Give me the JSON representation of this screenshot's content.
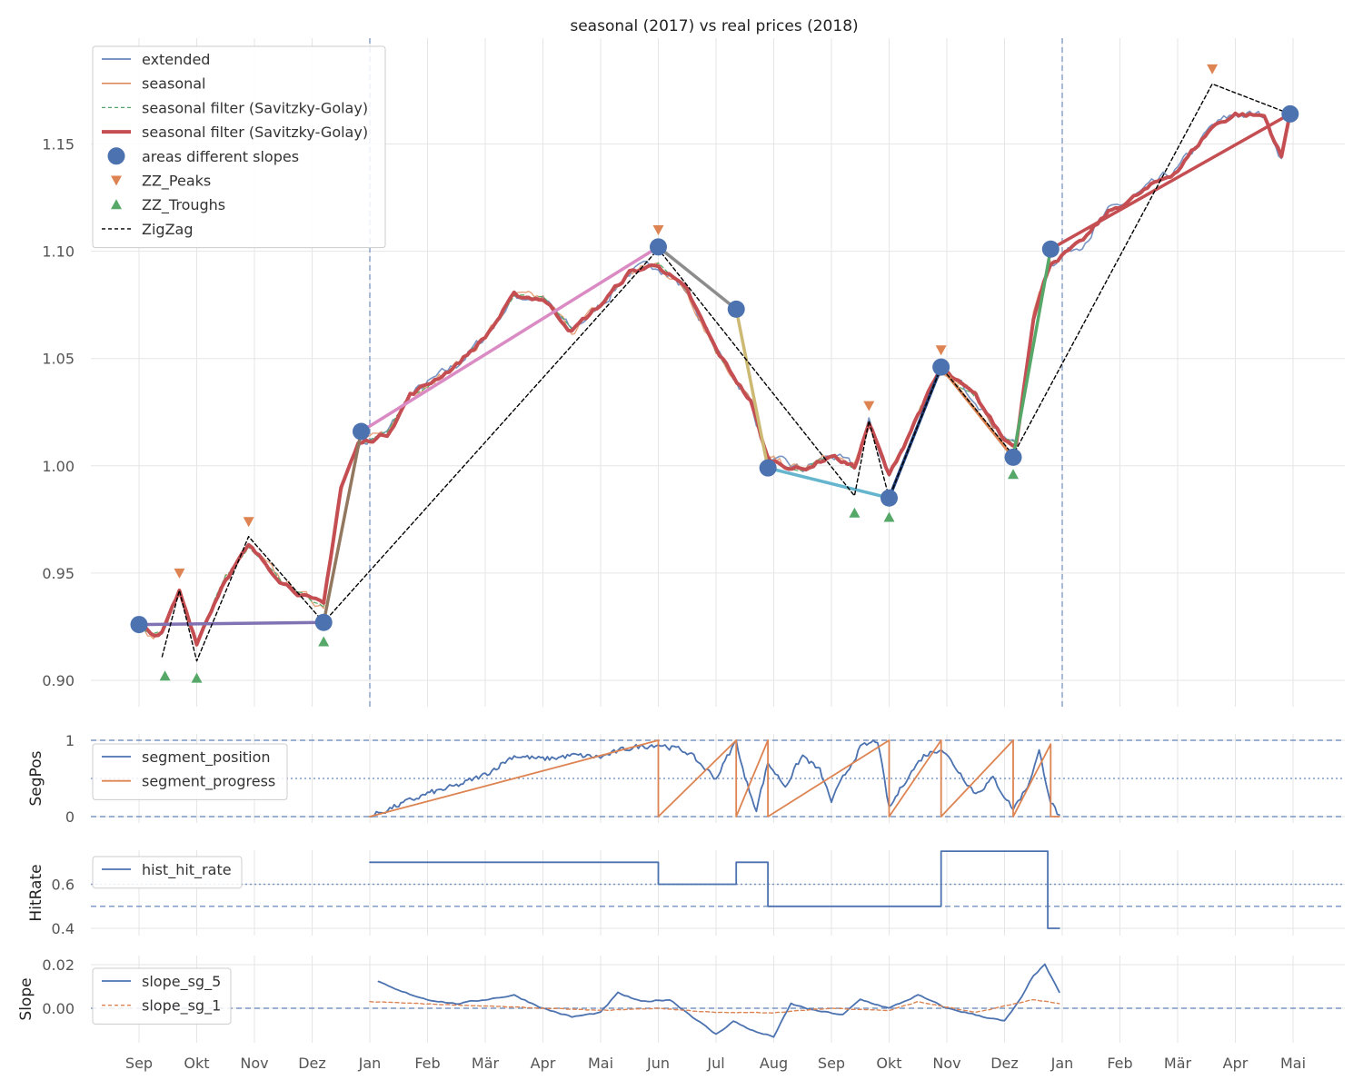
{
  "title": "seasonal (2017) vs real prices (2018)",
  "months": [
    "Sep",
    "Okt",
    "Nov",
    "Dez",
    "Jan",
    "Feb",
    "Mär",
    "Apr",
    "Mai",
    "Jun",
    "Jul",
    "Aug",
    "Sep",
    "Okt",
    "Nov",
    "Dez",
    "Jan",
    "Feb",
    "Mär",
    "Apr",
    "Mai"
  ],
  "colors": {
    "blue": "#4c72b0",
    "orange": "#dd8452",
    "green": "#55a868",
    "red": "#c44e52",
    "purple": "#8172b3",
    "brown": "#937860",
    "pink": "#da8bc3",
    "gray": "#8c8c8c",
    "olive": "#ccb974",
    "cyan": "#64b5cd",
    "navy": "#1f3f7a"
  },
  "chart_data": [
    {
      "type": "line",
      "title": "seasonal (2017) vs real prices (2018)",
      "ylabel": "",
      "ylim": [
        0.888,
        1.2
      ],
      "yticks": [
        "0.90",
        "0.95",
        "1.00",
        "1.05",
        "1.10",
        "1.15"
      ],
      "legend": [
        "extended",
        "seasonal",
        "seasonal filter (Savitzky-Golay)",
        "seasonal filter (Savitzky-Golay)",
        "areas different slopes",
        "ZZ_Peaks",
        "ZZ_Troughs",
        "ZigZag"
      ],
      "legend_position": "top-left",
      "series": [
        {
          "name": "areas different slopes",
          "points": [
            [
              0,
              0.926
            ],
            [
              3.2,
              0.927
            ],
            [
              3.85,
              1.016
            ],
            [
              9.0,
              1.102
            ],
            [
              10.35,
              1.073
            ],
            [
              10.9,
              0.999
            ],
            [
              13.0,
              0.985
            ],
            [
              13.9,
              1.046
            ],
            [
              15.15,
              1.004
            ],
            [
              15.8,
              1.101
            ],
            [
              19.95,
              1.164
            ]
          ]
        },
        {
          "name": "ZZ_Peaks",
          "points": [
            [
              0.7,
              0.95
            ],
            [
              1.9,
              0.974
            ],
            [
              9.0,
              1.11
            ],
            [
              12.65,
              1.028
            ],
            [
              13.9,
              1.054
            ],
            [
              18.6,
              1.185
            ]
          ]
        },
        {
          "name": "ZZ_Troughs",
          "points": [
            [
              0.45,
              0.902
            ],
            [
              1.0,
              0.901
            ],
            [
              3.2,
              0.918
            ],
            [
              12.4,
              0.978
            ],
            [
              13.0,
              0.976
            ],
            [
              15.15,
              0.996
            ]
          ]
        },
        {
          "name": "ZigZag",
          "points": [
            [
              0.4,
              0.911
            ],
            [
              0.7,
              0.942
            ],
            [
              1.0,
              0.909
            ],
            [
              1.9,
              0.967
            ],
            [
              3.2,
              0.927
            ],
            [
              9.0,
              1.101
            ],
            [
              12.4,
              0.986
            ],
            [
              12.65,
              1.021
            ],
            [
              13.0,
              0.985
            ],
            [
              13.9,
              1.046
            ],
            [
              15.15,
              1.005
            ],
            [
              18.6,
              1.178
            ],
            [
              19.95,
              1.164
            ]
          ]
        }
      ]
    },
    {
      "type": "line",
      "ylabel": "SegPos",
      "ylim": [
        0,
        1
      ],
      "yticks": [
        "0",
        "1"
      ],
      "legend": [
        "segment_position",
        "segment_progress"
      ],
      "series": [
        {
          "name": "segment_progress",
          "points": [
            [
              4.0,
              0
            ],
            [
              9.0,
              1
            ],
            [
              9.0,
              0
            ],
            [
              10.35,
              1
            ],
            [
              10.35,
              0
            ],
            [
              10.9,
              1
            ],
            [
              10.9,
              0
            ],
            [
              13.0,
              1
            ],
            [
              13.0,
              0
            ],
            [
              13.9,
              1
            ],
            [
              13.9,
              0
            ],
            [
              15.15,
              1
            ],
            [
              15.15,
              0
            ],
            [
              15.8,
              0.95
            ],
            [
              15.8,
              0
            ],
            [
              15.95,
              0
            ]
          ]
        },
        {
          "name": "segment_position",
          "points": [
            [
              4.0,
              0
            ],
            [
              4.5,
              0.15
            ],
            [
              5.0,
              0.3
            ],
            [
              5.5,
              0.4
            ],
            [
              6.0,
              0.55
            ],
            [
              6.5,
              0.8
            ],
            [
              7.0,
              0.75
            ],
            [
              7.5,
              0.8
            ],
            [
              8.0,
              0.78
            ],
            [
              8.5,
              0.9
            ],
            [
              9.0,
              0.95
            ],
            [
              9.5,
              0.85
            ],
            [
              10.0,
              0.5
            ],
            [
              10.35,
              1.0
            ],
            [
              10.5,
              0.5
            ],
            [
              10.7,
              0.1
            ],
            [
              10.9,
              0.7
            ],
            [
              11.2,
              0.4
            ],
            [
              11.5,
              0.8
            ],
            [
              11.8,
              0.6
            ],
            [
              12.0,
              0.2
            ],
            [
              12.2,
              0.5
            ],
            [
              12.5,
              0.9
            ],
            [
              12.8,
              1.0
            ],
            [
              13.0,
              0.1
            ],
            [
              13.3,
              0.5
            ],
            [
              13.6,
              0.8
            ],
            [
              13.9,
              0.9
            ],
            [
              14.2,
              0.6
            ],
            [
              14.5,
              0.3
            ],
            [
              14.8,
              0.5
            ],
            [
              15.15,
              0.1
            ],
            [
              15.4,
              0.4
            ],
            [
              15.6,
              0.85
            ],
            [
              15.8,
              0.2
            ],
            [
              15.95,
              0
            ]
          ]
        }
      ]
    },
    {
      "type": "line",
      "ylabel": "HitRate",
      "ylim": [
        0.38,
        0.78
      ],
      "yticks": [
        "0.4",
        "0.6"
      ],
      "legend": [
        "hist_hit_rate"
      ],
      "series": [
        {
          "name": "hist_hit_rate",
          "points": [
            [
              4.0,
              0.7
            ],
            [
              9.0,
              0.7
            ],
            [
              9.0,
              0.6
            ],
            [
              10.35,
              0.6
            ],
            [
              10.35,
              0.7
            ],
            [
              10.9,
              0.7
            ],
            [
              10.9,
              0.5
            ],
            [
              13.9,
              0.5
            ],
            [
              13.9,
              0.75
            ],
            [
              15.75,
              0.75
            ],
            [
              15.75,
              0.4
            ],
            [
              15.95,
              0.4
            ]
          ]
        }
      ]
    },
    {
      "type": "line",
      "ylabel": "Slope",
      "ylim": [
        -0.017,
        0.025
      ],
      "yticks": [
        "0.00",
        "0.02"
      ],
      "legend": [
        "slope_sg_5",
        "slope_sg_1"
      ],
      "series": [
        {
          "name": "slope_sg_5",
          "points": [
            [
              4.15,
              0.012
            ],
            [
              4.5,
              0.008
            ],
            [
              5.0,
              0.004
            ],
            [
              5.5,
              0.002
            ],
            [
              6.0,
              0.004
            ],
            [
              6.5,
              0.006
            ],
            [
              7.0,
              0.0
            ],
            [
              7.5,
              -0.004
            ],
            [
              8.0,
              -0.002
            ],
            [
              8.3,
              0.007
            ],
            [
              8.7,
              0.003
            ],
            [
              9.2,
              0.004
            ],
            [
              9.6,
              -0.004
            ],
            [
              10.0,
              -0.012
            ],
            [
              10.3,
              -0.006
            ],
            [
              10.7,
              -0.011
            ],
            [
              11.0,
              -0.013
            ],
            [
              11.3,
              0.002
            ],
            [
              11.7,
              -0.001
            ],
            [
              12.2,
              -0.003
            ],
            [
              12.5,
              0.004
            ],
            [
              13.0,
              0.0
            ],
            [
              13.5,
              0.006
            ],
            [
              14.0,
              0.0
            ],
            [
              14.5,
              -0.003
            ],
            [
              15.0,
              -0.006
            ],
            [
              15.3,
              0.005
            ],
            [
              15.5,
              0.015
            ],
            [
              15.7,
              0.02
            ],
            [
              15.95,
              0.007
            ]
          ]
        },
        {
          "name": "slope_sg_1",
          "points": [
            [
              4.0,
              0.003
            ],
            [
              5.0,
              0.002
            ],
            [
              6.0,
              0.001
            ],
            [
              7.0,
              0.0
            ],
            [
              8.0,
              -0.001
            ],
            [
              9.0,
              0.0
            ],
            [
              10.0,
              -0.002
            ],
            [
              11.0,
              -0.002
            ],
            [
              12.0,
              0.0
            ],
            [
              13.0,
              -0.001
            ],
            [
              13.5,
              0.003
            ],
            [
              14.5,
              -0.002
            ],
            [
              15.5,
              0.004
            ],
            [
              15.95,
              0.002
            ]
          ]
        }
      ]
    }
  ]
}
